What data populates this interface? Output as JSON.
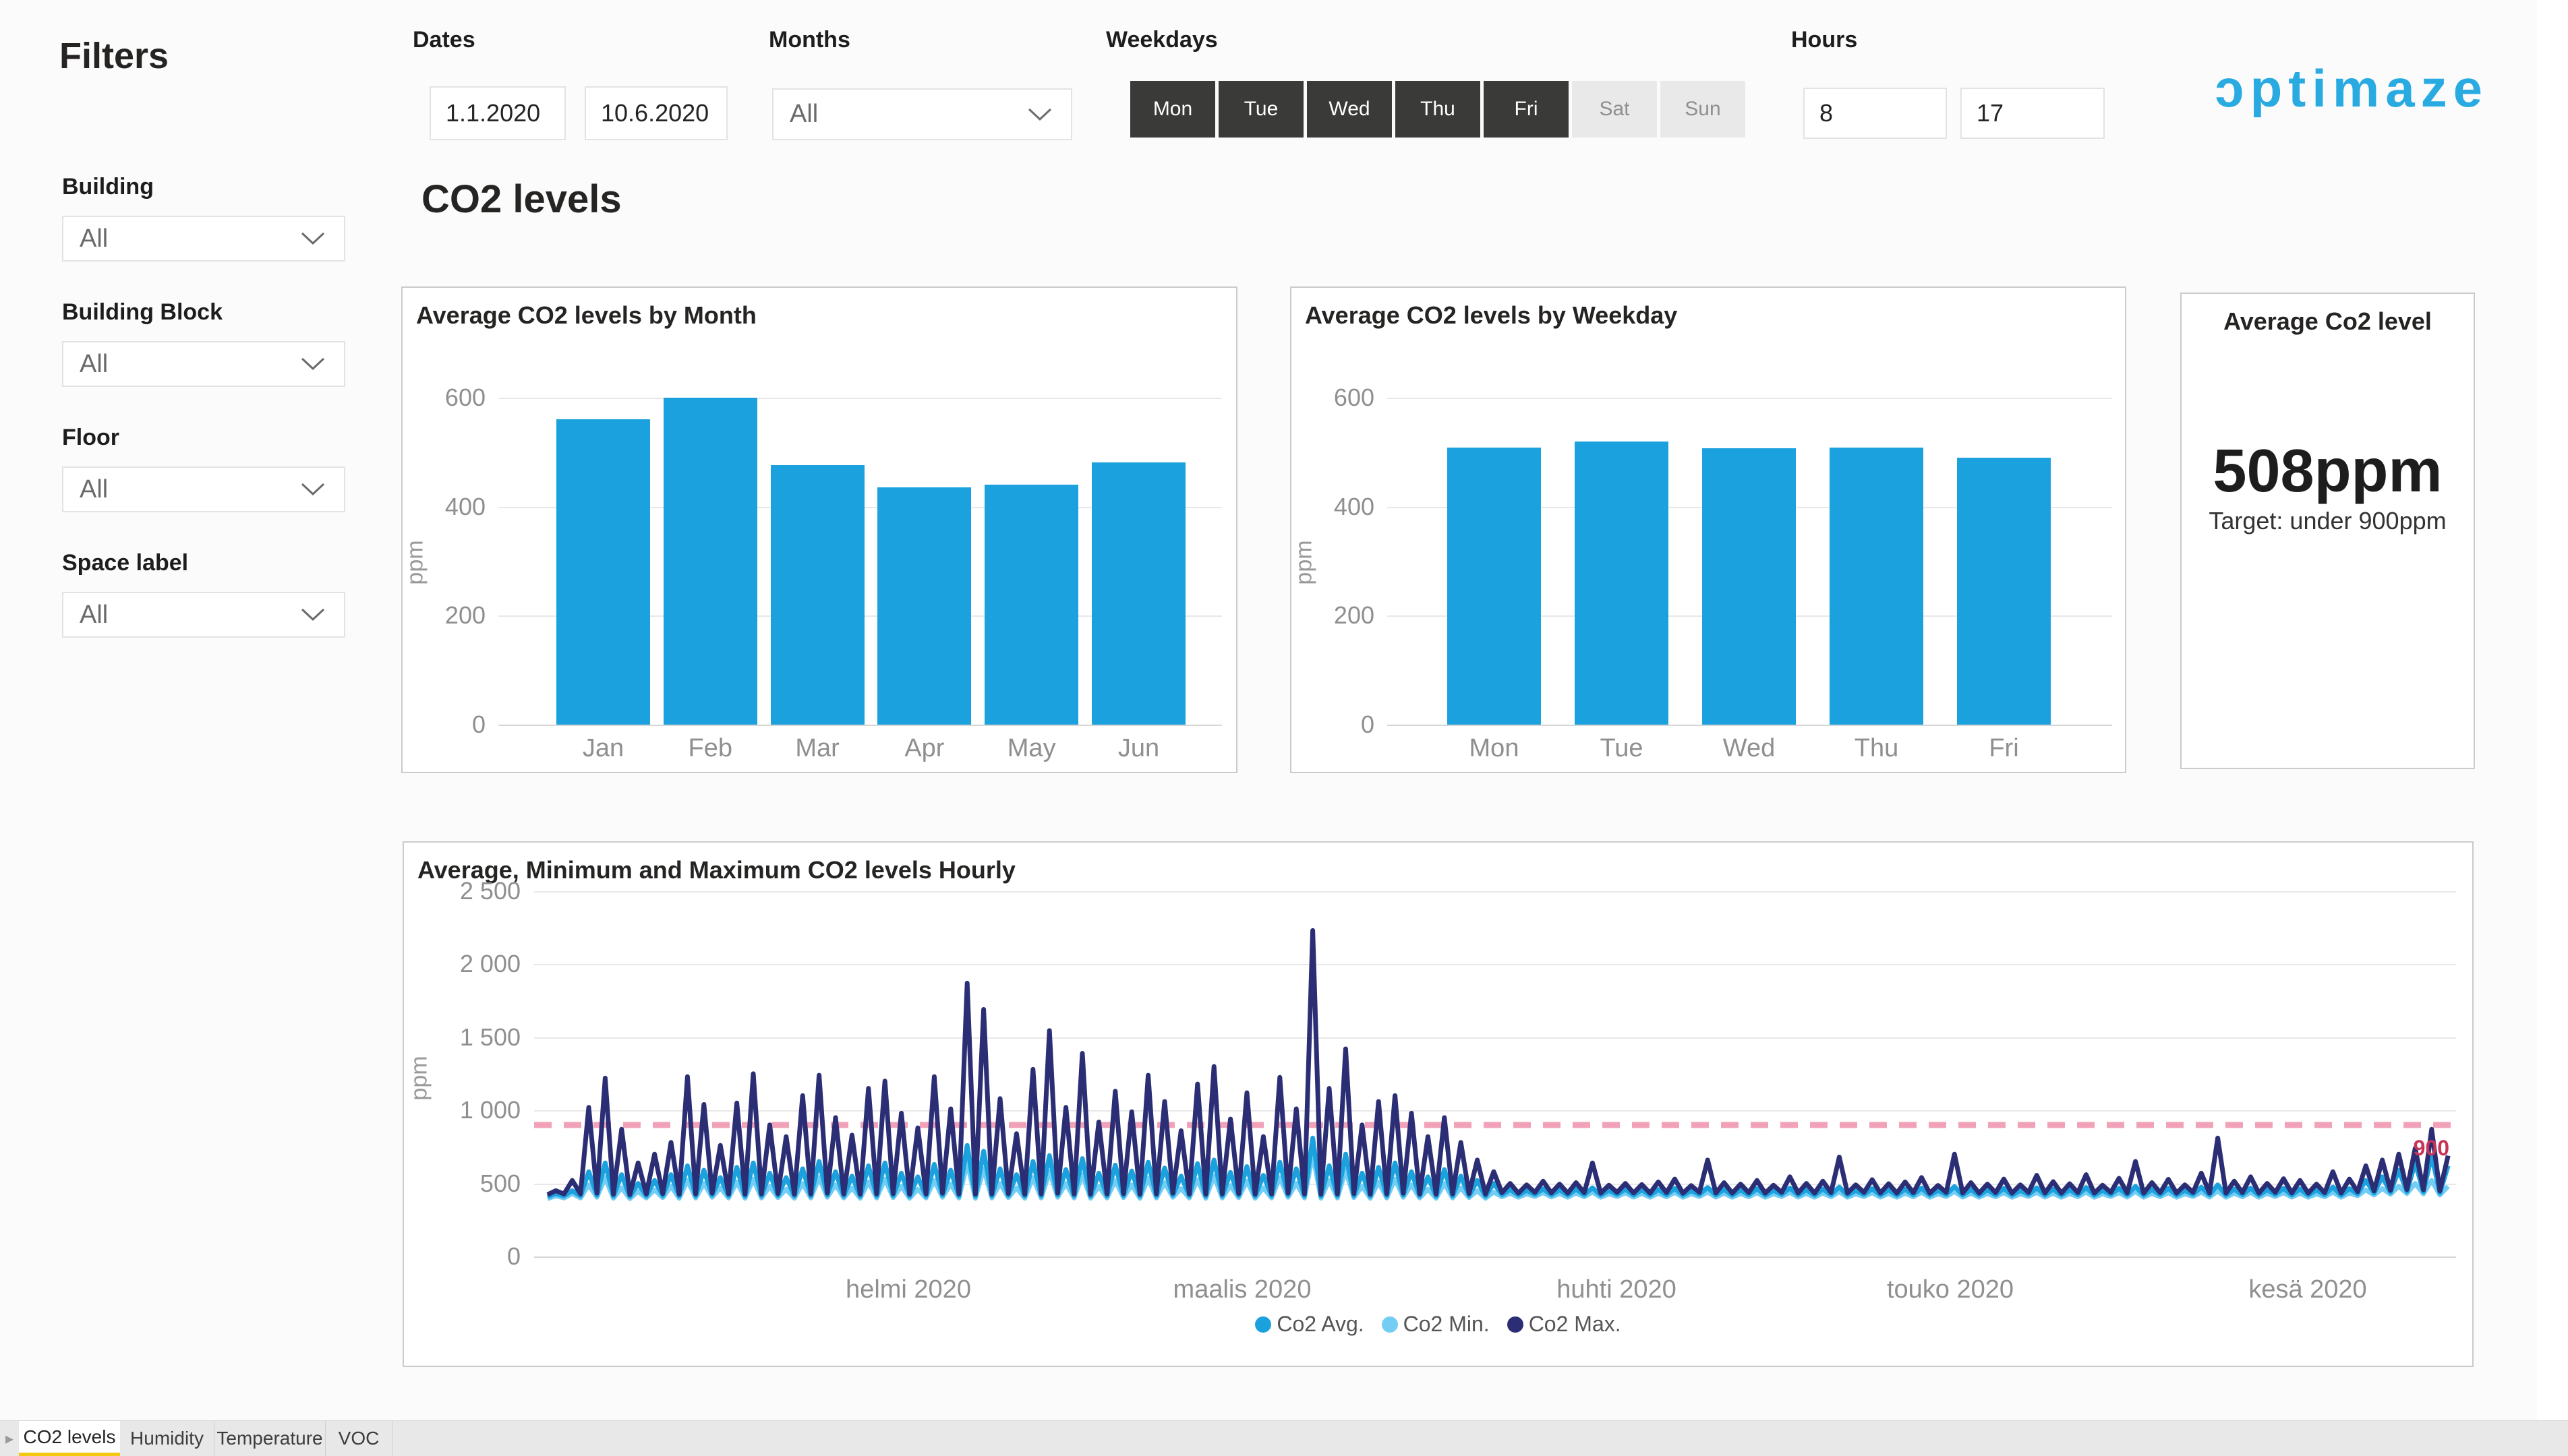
{
  "header": {
    "filters_title": "Filters",
    "dates": {
      "label": "Dates",
      "from": "1.1.2020",
      "to": "10.6.2020"
    },
    "months": {
      "label": "Months",
      "value": "All"
    },
    "weekdays": {
      "label": "Weekdays",
      "days": [
        {
          "label": "Mon",
          "selected": true
        },
        {
          "label": "Tue",
          "selected": true
        },
        {
          "label": "Wed",
          "selected": true
        },
        {
          "label": "Thu",
          "selected": true
        },
        {
          "label": "Fri",
          "selected": true
        },
        {
          "label": "Sat",
          "selected": false
        },
        {
          "label": "Sun",
          "selected": false
        }
      ]
    },
    "hours": {
      "label": "Hours",
      "from": "8",
      "to": "17"
    },
    "logo_text": "ɔptimaze"
  },
  "sidebar": {
    "filters": [
      {
        "label": "Building",
        "value": "All"
      },
      {
        "label": "Building Block",
        "value": "All"
      },
      {
        "label": "Floor",
        "value": "All"
      },
      {
        "label": "Space label",
        "value": "All"
      }
    ]
  },
  "page": {
    "title": "CO2 levels"
  },
  "colors": {
    "accent": "#1BA2DE",
    "series_min": "#74CDF3",
    "series_max": "#2B2E74",
    "target_line": "#F2A2B8",
    "target_label": "#C73457",
    "logo": "#29ABE2",
    "tab_underline": "#F2C811",
    "weekday_selected_bg": "#3A3A38"
  },
  "chart_data": [
    {
      "type": "bar",
      "title": "Average CO2 levels by Month",
      "ylabel": "ppm",
      "ylim": [
        0,
        600
      ],
      "yticks": [
        600,
        400,
        200,
        0
      ],
      "grid": true,
      "categories": [
        "Jan",
        "Feb",
        "Mar",
        "Apr",
        "May",
        "Jun"
      ],
      "values": [
        560,
        600,
        476,
        436,
        440,
        481
      ]
    },
    {
      "type": "bar",
      "title": "Average CO2 levels by Weekday",
      "ylabel": "ppm",
      "ylim": [
        0,
        600
      ],
      "yticks": [
        600,
        400,
        200,
        0
      ],
      "grid": true,
      "categories": [
        "Mon",
        "Tue",
        "Wed",
        "Thu",
        "Fri"
      ],
      "values": [
        508,
        520,
        507,
        509,
        490
      ]
    },
    {
      "type": "card",
      "title": "Average Co2 level",
      "value": "508ppm",
      "subtitle": "Target: under 900ppm"
    },
    {
      "type": "line",
      "title": "Average, Minimum and Maximum CO2 levels Hourly",
      "ylabel": "ppm",
      "ylim": [
        0,
        2500
      ],
      "yticks": [
        "2 500",
        "2 000",
        "1 500",
        "1 000",
        "500",
        "0"
      ],
      "ytick_values": [
        2500,
        2000,
        1500,
        1000,
        500,
        0
      ],
      "x_labels": [
        "helmi 2020",
        "maalis 2020",
        "huhti 2020",
        "touko 2020",
        "kesä 2020"
      ],
      "legend": [
        "Co2 Avg.",
        "Co2 Min.",
        "Co2 Max."
      ],
      "legend_position": "bottom",
      "target_line": {
        "value": 900,
        "label": "900"
      },
      "series_note": "one slot per working day Jan 1 - Jun 10 2020; slot = [low, min_peak, avg_peak, max_peak] ppm",
      "slots": [
        [
          395,
          415,
          430,
          450
        ],
        [
          400,
          430,
          450,
          520
        ],
        [
          400,
          490,
          580,
          1020
        ],
        [
          405,
          540,
          640,
          1220
        ],
        [
          398,
          470,
          560,
          870
        ],
        [
          395,
          445,
          500,
          640
        ],
        [
          400,
          455,
          520,
          700
        ],
        [
          402,
          480,
          560,
          780
        ],
        [
          398,
          520,
          620,
          1230
        ],
        [
          400,
          500,
          590,
          1040
        ],
        [
          405,
          470,
          540,
          760
        ],
        [
          400,
          510,
          610,
          1050
        ],
        [
          398,
          530,
          640,
          1250
        ],
        [
          400,
          480,
          570,
          900
        ],
        [
          402,
          460,
          540,
          820
        ],
        [
          398,
          500,
          600,
          1100
        ],
        [
          400,
          540,
          650,
          1240
        ],
        [
          405,
          490,
          580,
          950
        ],
        [
          400,
          470,
          550,
          830
        ],
        [
          398,
          510,
          620,
          1150
        ],
        [
          400,
          530,
          640,
          1200
        ],
        [
          402,
          480,
          570,
          980
        ],
        [
          398,
          460,
          545,
          880
        ],
        [
          400,
          520,
          630,
          1230
        ],
        [
          405,
          495,
          590,
          1010
        ],
        [
          400,
          640,
          760,
          1870
        ],
        [
          398,
          600,
          720,
          1690
        ],
        [
          400,
          500,
          600,
          1080
        ],
        [
          402,
          470,
          560,
          840
        ],
        [
          398,
          540,
          650,
          1280
        ],
        [
          400,
          580,
          690,
          1545
        ],
        [
          405,
          500,
          595,
          1020
        ],
        [
          400,
          560,
          670,
          1390
        ],
        [
          398,
          480,
          570,
          920
        ],
        [
          400,
          520,
          625,
          1130
        ],
        [
          402,
          490,
          585,
          990
        ],
        [
          398,
          535,
          645,
          1240
        ],
        [
          400,
          505,
          605,
          1060
        ],
        [
          405,
          465,
          550,
          860
        ],
        [
          400,
          525,
          635,
          1180
        ],
        [
          398,
          550,
          660,
          1300
        ],
        [
          400,
          485,
          575,
          940
        ],
        [
          402,
          515,
          615,
          1120
        ],
        [
          398,
          470,
          555,
          820
        ],
        [
          400,
          540,
          645,
          1225
        ],
        [
          405,
          500,
          600,
          1010
        ],
        [
          400,
          700,
          810,
          2230
        ],
        [
          398,
          520,
          620,
          1150
        ],
        [
          400,
          590,
          700,
          1420
        ],
        [
          402,
          480,
          570,
          900
        ],
        [
          398,
          510,
          610,
          1060
        ],
        [
          400,
          530,
          640,
          1100
        ],
        [
          405,
          490,
          580,
          980
        ],
        [
          400,
          460,
          545,
          820
        ],
        [
          398,
          500,
          595,
          950
        ],
        [
          400,
          470,
          550,
          780
        ],
        [
          402,
          450,
          520,
          660
        ],
        [
          398,
          440,
          500,
          580
        ],
        [
          408,
          432,
          458,
          500
        ],
        [
          405,
          428,
          452,
          490
        ],
        [
          410,
          436,
          462,
          515
        ],
        [
          407,
          430,
          455,
          495
        ],
        [
          405,
          434,
          460,
          505
        ],
        [
          408,
          440,
          470,
          640
        ],
        [
          405,
          428,
          452,
          488
        ],
        [
          410,
          435,
          460,
          500
        ],
        [
          406,
          430,
          456,
          492
        ],
        [
          405,
          432,
          458,
          510
        ],
        [
          408,
          438,
          466,
          530
        ],
        [
          405,
          428,
          450,
          485
        ],
        [
          410,
          440,
          472,
          660
        ],
        [
          406,
          432,
          458,
          505
        ],
        [
          405,
          430,
          455,
          495
        ],
        [
          408,
          436,
          464,
          520
        ],
        [
          405,
          428,
          452,
          488
        ],
        [
          410,
          438,
          468,
          545
        ],
        [
          406,
          430,
          456,
          500
        ],
        [
          405,
          434,
          462,
          515
        ],
        [
          408,
          442,
          475,
          680
        ],
        [
          405,
          428,
          452,
          490
        ],
        [
          410,
          436,
          464,
          525
        ],
        [
          406,
          430,
          456,
          498
        ],
        [
          405,
          432,
          460,
          510
        ],
        [
          408,
          438,
          468,
          540
        ],
        [
          405,
          428,
          452,
          486
        ],
        [
          410,
          444,
          478,
          700
        ],
        [
          406,
          432,
          458,
          505
        ],
        [
          405,
          430,
          456,
          495
        ],
        [
          408,
          436,
          466,
          530
        ],
        [
          405,
          428,
          452,
          490
        ],
        [
          410,
          438,
          470,
          555
        ],
        [
          406,
          432,
          460,
          512
        ],
        [
          405,
          430,
          456,
          498
        ],
        [
          408,
          440,
          472,
          560
        ],
        [
          405,
          428,
          452,
          488
        ],
        [
          410,
          436,
          466,
          535
        ],
        [
          406,
          444,
          480,
          650
        ],
        [
          405,
          430,
          458,
          505
        ],
        [
          408,
          436,
          466,
          528
        ],
        [
          405,
          428,
          452,
          490
        ],
        [
          410,
          440,
          474,
          570
        ],
        [
          406,
          448,
          490,
          810
        ],
        [
          405,
          432,
          460,
          515
        ],
        [
          408,
          438,
          468,
          545
        ],
        [
          405,
          430,
          456,
          500
        ],
        [
          410,
          436,
          466,
          532
        ],
        [
          406,
          432,
          462,
          520
        ],
        [
          405,
          428,
          455,
          495
        ],
        [
          408,
          440,
          475,
          580
        ],
        [
          405,
          434,
          464,
          530
        ],
        [
          415,
          455,
          520,
          620
        ],
        [
          420,
          465,
          545,
          660
        ],
        [
          425,
          480,
          590,
          700
        ],
        [
          430,
          500,
          640,
          740
        ],
        [
          428,
          520,
          690,
          870
        ],
        [
          420,
          480,
          620,
          690
        ]
      ]
    }
  ],
  "tabs": {
    "active": "CO2 levels",
    "items": [
      "CO2 levels",
      "Humidity",
      "Temperature",
      "VOC"
    ]
  }
}
